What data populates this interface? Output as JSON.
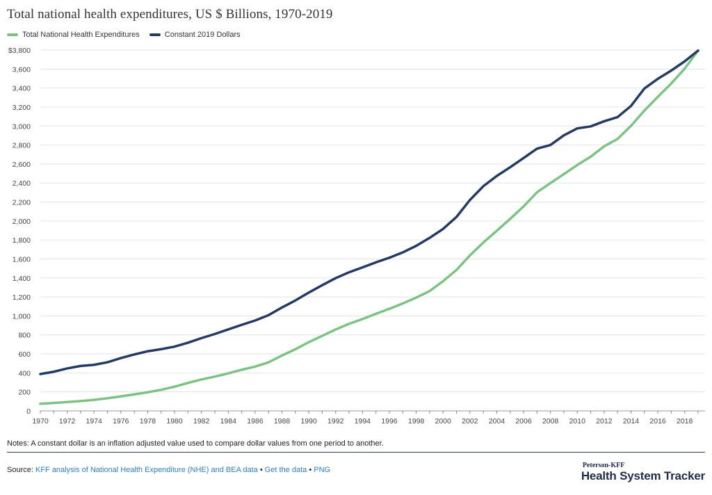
{
  "page": {
    "title": "Total national health expenditures, US $ Billions, 1970-2019",
    "notes": "Notes: A constant dollar is an inflation adjusted value used to compare dollar values from one period to another.",
    "source_label": "Source:",
    "source_link": "KFF analysis of National Health Expenditure (NHE) and BEA data",
    "sep1": " • ",
    "get_data": "Get the data",
    "sep2": " • ",
    "png": "PNG",
    "brand_top": "Peterson-KFF",
    "brand_main": "Health System Tracker"
  },
  "colors": {
    "total": "#7cc383",
    "constant": "#233a63",
    "grid": "#e3e3e3",
    "axis": "#888888"
  },
  "chart_data": {
    "type": "line",
    "title": "Total national health expenditures, US $ Billions, 1970-2019",
    "xlabel": "",
    "ylabel": "",
    "x": [
      1970,
      1971,
      1972,
      1973,
      1974,
      1975,
      1976,
      1977,
      1978,
      1979,
      1980,
      1981,
      1982,
      1983,
      1984,
      1985,
      1986,
      1987,
      1988,
      1989,
      1990,
      1991,
      1992,
      1993,
      1994,
      1995,
      1996,
      1997,
      1998,
      1999,
      2000,
      2001,
      2002,
      2003,
      2004,
      2005,
      2006,
      2007,
      2008,
      2009,
      2010,
      2011,
      2012,
      2013,
      2014,
      2015,
      2016,
      2017,
      2018,
      2019
    ],
    "xticks": [
      "1970",
      "1972",
      "1974",
      "1976",
      "1978",
      "1980",
      "1982",
      "1984",
      "1986",
      "1988",
      "1990",
      "1992",
      "1994",
      "1996",
      "1998",
      "2000",
      "2002",
      "2004",
      "2006",
      "2008",
      "2010",
      "2012",
      "2014",
      "2016",
      "2018"
    ],
    "ylim": [
      0,
      3800
    ],
    "yticks": [
      "0",
      "200",
      "400",
      "600",
      "800",
      "1,000",
      "1,200",
      "1,400",
      "1,600",
      "1,800",
      "2,000",
      "2,200",
      "2,400",
      "2,600",
      "2,800",
      "3,000",
      "3,200",
      "3,400",
      "3,600",
      "$3,800"
    ],
    "grid": true,
    "legend_position": "top-left",
    "series": [
      {
        "name": "Total National Health Expenditures",
        "color": "#7cc383",
        "values": [
          75,
          83,
          93,
          103,
          116,
          133,
          153,
          174,
          196,
          222,
          255,
          294,
          331,
          361,
          395,
          433,
          466,
          511,
          583,
          649,
          724,
          790,
          857,
          917,
          967,
          1022,
          1075,
          1131,
          1193,
          1262,
          1366,
          1484,
          1637,
          1773,
          1896,
          2022,
          2153,
          2302,
          2399,
          2493,
          2590,
          2677,
          2786,
          2864,
          3002,
          3163,
          3307,
          3448,
          3604,
          3795
        ]
      },
      {
        "name": "Constant 2019 Dollars",
        "color": "#233a63",
        "values": [
          388,
          412,
          447,
          473,
          485,
          512,
          556,
          594,
          628,
          650,
          677,
          718,
          766,
          810,
          858,
          906,
          952,
          1008,
          1089,
          1163,
          1246,
          1324,
          1398,
          1460,
          1511,
          1564,
          1613,
          1669,
          1738,
          1822,
          1916,
          2042,
          2221,
          2366,
          2474,
          2566,
          2663,
          2762,
          2800,
          2902,
          2975,
          2996,
          3050,
          3094,
          3211,
          3395,
          3497,
          3584,
          3681,
          3795
        ]
      }
    ]
  }
}
